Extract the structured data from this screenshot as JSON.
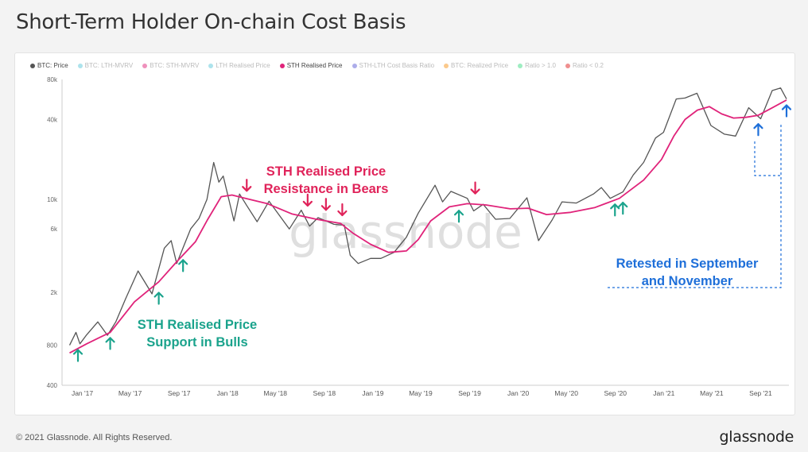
{
  "title": "Short-Term Holder On-chain Cost Basis",
  "footer": {
    "copyright": "© 2021 Glassnode. All Rights Reserved.",
    "brand": "glassnode"
  },
  "watermark": "glassnode",
  "legend": [
    {
      "label": "BTC: Price",
      "color": "#555555",
      "active": true
    },
    {
      "label": "BTC: LTH-MVRV",
      "color": "#5bc8d9",
      "active": false
    },
    {
      "label": "BTC: STH-MVRV",
      "color": "#e0237a",
      "active": false
    },
    {
      "label": "LTH Realised Price",
      "color": "#5bc8d9",
      "active": false
    },
    {
      "label": "STH Realised Price",
      "color": "#e0237a",
      "active": true
    },
    {
      "label": "STH-LTH Cost Basis Ratio",
      "color": "#5b5bd6",
      "active": false
    },
    {
      "label": "BTC: Realized Price",
      "color": "#f7931a",
      "active": false
    },
    {
      "label": "Ratio > 1.0",
      "color": "#3ddc84",
      "active": false
    },
    {
      "label": "Ratio < 0.2",
      "color": "#e02020",
      "active": false
    }
  ],
  "annotations": {
    "bears": [
      "STH Realised Price",
      "Resistance in Bears"
    ],
    "bulls": [
      "STH Realised Price",
      "Support in Bulls"
    ],
    "retest": [
      "Retested in September",
      "and November"
    ]
  },
  "colors": {
    "price": "#555555",
    "sth": "#e0237a",
    "support": "#1aa38c",
    "resistance": "#e0235a",
    "retest": "#1e6fd9"
  },
  "chart_data": {
    "type": "line",
    "title": "Short-Term Holder On-chain Cost Basis",
    "y_scale": "log",
    "ylim": [
      400,
      80000
    ],
    "y_ticks": [
      400,
      800,
      2000,
      6000,
      10000,
      40000,
      80000
    ],
    "y_tick_labels": [
      "400",
      "800",
      "2k",
      "6k",
      "10k",
      "40k",
      "80k"
    ],
    "xlim": [
      "2016-12-01",
      "2021-12-01"
    ],
    "x_ticks": [
      "2017-01-01",
      "2017-05-01",
      "2017-09-01",
      "2018-01-01",
      "2018-05-01",
      "2018-09-01",
      "2019-01-01",
      "2019-05-01",
      "2019-09-01",
      "2020-01-01",
      "2020-05-01",
      "2020-09-01",
      "2021-01-01",
      "2021-05-01",
      "2021-09-01"
    ],
    "x_tick_labels": [
      "Jan '17",
      "May '17",
      "Sep '17",
      "Jan '18",
      "May '18",
      "Sep '18",
      "Jan '19",
      "May '19",
      "Sep '19",
      "Jan '20",
      "May '20",
      "Sep '20",
      "Jan '21",
      "May '21",
      "Sep '21"
    ],
    "grid": false,
    "legend_position": "top-left",
    "series": [
      {
        "name": "BTC: Price",
        "values": [
          [
            "2016-12-20",
            800
          ],
          [
            "2017-01-05",
            1000
          ],
          [
            "2017-01-15",
            820
          ],
          [
            "2017-02-01",
            960
          ],
          [
            "2017-03-01",
            1200
          ],
          [
            "2017-03-25",
            950
          ],
          [
            "2017-04-15",
            1200
          ],
          [
            "2017-05-10",
            1800
          ],
          [
            "2017-06-10",
            2900
          ],
          [
            "2017-07-15",
            1950
          ],
          [
            "2017-08-15",
            4300
          ],
          [
            "2017-09-01",
            4900
          ],
          [
            "2017-09-15",
            3300
          ],
          [
            "2017-10-20",
            6000
          ],
          [
            "2017-11-10",
            7200
          ],
          [
            "2017-11-30",
            10000
          ],
          [
            "2017-12-17",
            19000
          ],
          [
            "2017-12-30",
            13500
          ],
          [
            "2018-01-10",
            15000
          ],
          [
            "2018-02-06",
            6900
          ],
          [
            "2018-02-20",
            11000
          ],
          [
            "2018-03-10",
            9000
          ],
          [
            "2018-04-05",
            6800
          ],
          [
            "2018-05-05",
            9700
          ],
          [
            "2018-06-25",
            6000
          ],
          [
            "2018-07-25",
            8300
          ],
          [
            "2018-08-15",
            6300
          ],
          [
            "2018-09-05",
            7300
          ],
          [
            "2018-10-15",
            6500
          ],
          [
            "2018-11-10",
            6400
          ],
          [
            "2018-11-25",
            3800
          ],
          [
            "2018-12-15",
            3300
          ],
          [
            "2019-01-15",
            3600
          ],
          [
            "2019-02-10",
            3600
          ],
          [
            "2019-03-15",
            4000
          ],
          [
            "2019-04-15",
            5200
          ],
          [
            "2019-05-15",
            7900
          ],
          [
            "2019-06-26",
            12800
          ],
          [
            "2019-07-15",
            9600
          ],
          [
            "2019-08-05",
            11500
          ],
          [
            "2019-09-15",
            10200
          ],
          [
            "2019-10-01",
            8200
          ],
          [
            "2019-10-25",
            9200
          ],
          [
            "2019-11-25",
            7100
          ],
          [
            "2019-12-31",
            7200
          ],
          [
            "2020-02-12",
            10300
          ],
          [
            "2020-03-12",
            4900
          ],
          [
            "2020-04-15",
            7000
          ],
          [
            "2020-05-10",
            9600
          ],
          [
            "2020-06-15",
            9400
          ],
          [
            "2020-07-28",
            11000
          ],
          [
            "2020-08-17",
            12300
          ],
          [
            "2020-09-08",
            10200
          ],
          [
            "2020-10-10",
            11400
          ],
          [
            "2020-11-05",
            15300
          ],
          [
            "2020-12-01",
            19000
          ],
          [
            "2020-12-31",
            29000
          ],
          [
            "2021-01-20",
            32000
          ],
          [
            "2021-02-21",
            57000
          ],
          [
            "2021-03-15",
            58000
          ],
          [
            "2021-04-14",
            63000
          ],
          [
            "2021-05-19",
            36000
          ],
          [
            "2021-06-22",
            31000
          ],
          [
            "2021-07-20",
            30000
          ],
          [
            "2021-08-22",
            49000
          ],
          [
            "2021-09-21",
            40500
          ],
          [
            "2021-10-20",
            66000
          ],
          [
            "2021-11-10",
            69000
          ],
          [
            "2021-11-25",
            57000
          ]
        ]
      },
      {
        "name": "STH Realised Price",
        "values": [
          [
            "2016-12-20",
            700
          ],
          [
            "2017-02-01",
            820
          ],
          [
            "2017-04-01",
            1000
          ],
          [
            "2017-06-01",
            1700
          ],
          [
            "2017-08-01",
            2400
          ],
          [
            "2017-09-15",
            3400
          ],
          [
            "2017-11-01",
            4800
          ],
          [
            "2017-12-01",
            7000
          ],
          [
            "2018-01-05",
            10500
          ],
          [
            "2018-02-01",
            10800
          ],
          [
            "2018-03-01",
            10300
          ],
          [
            "2018-05-01",
            9300
          ],
          [
            "2018-07-01",
            7800
          ],
          [
            "2018-09-01",
            7100
          ],
          [
            "2018-11-01",
            6600
          ],
          [
            "2018-12-01",
            5600
          ],
          [
            "2019-01-15",
            4600
          ],
          [
            "2019-03-01",
            4000
          ],
          [
            "2019-04-15",
            4100
          ],
          [
            "2019-05-15",
            5000
          ],
          [
            "2019-06-15",
            6900
          ],
          [
            "2019-08-01",
            8800
          ],
          [
            "2019-09-15",
            9300
          ],
          [
            "2019-11-01",
            9100
          ],
          [
            "2020-01-01",
            8500
          ],
          [
            "2020-02-15",
            8600
          ],
          [
            "2020-04-01",
            7700
          ],
          [
            "2020-06-01",
            8000
          ],
          [
            "2020-08-01",
            8700
          ],
          [
            "2020-10-01",
            10200
          ],
          [
            "2020-12-01",
            14000
          ],
          [
            "2021-01-15",
            20000
          ],
          [
            "2021-02-15",
            30000
          ],
          [
            "2021-03-15",
            40000
          ],
          [
            "2021-04-15",
            47000
          ],
          [
            "2021-05-15",
            50000
          ],
          [
            "2021-06-15",
            44000
          ],
          [
            "2021-07-15",
            41000
          ],
          [
            "2021-08-15",
            41500
          ],
          [
            "2021-09-15",
            43000
          ],
          [
            "2021-10-15",
            48000
          ],
          [
            "2021-11-25",
            56000
          ]
        ]
      }
    ]
  }
}
